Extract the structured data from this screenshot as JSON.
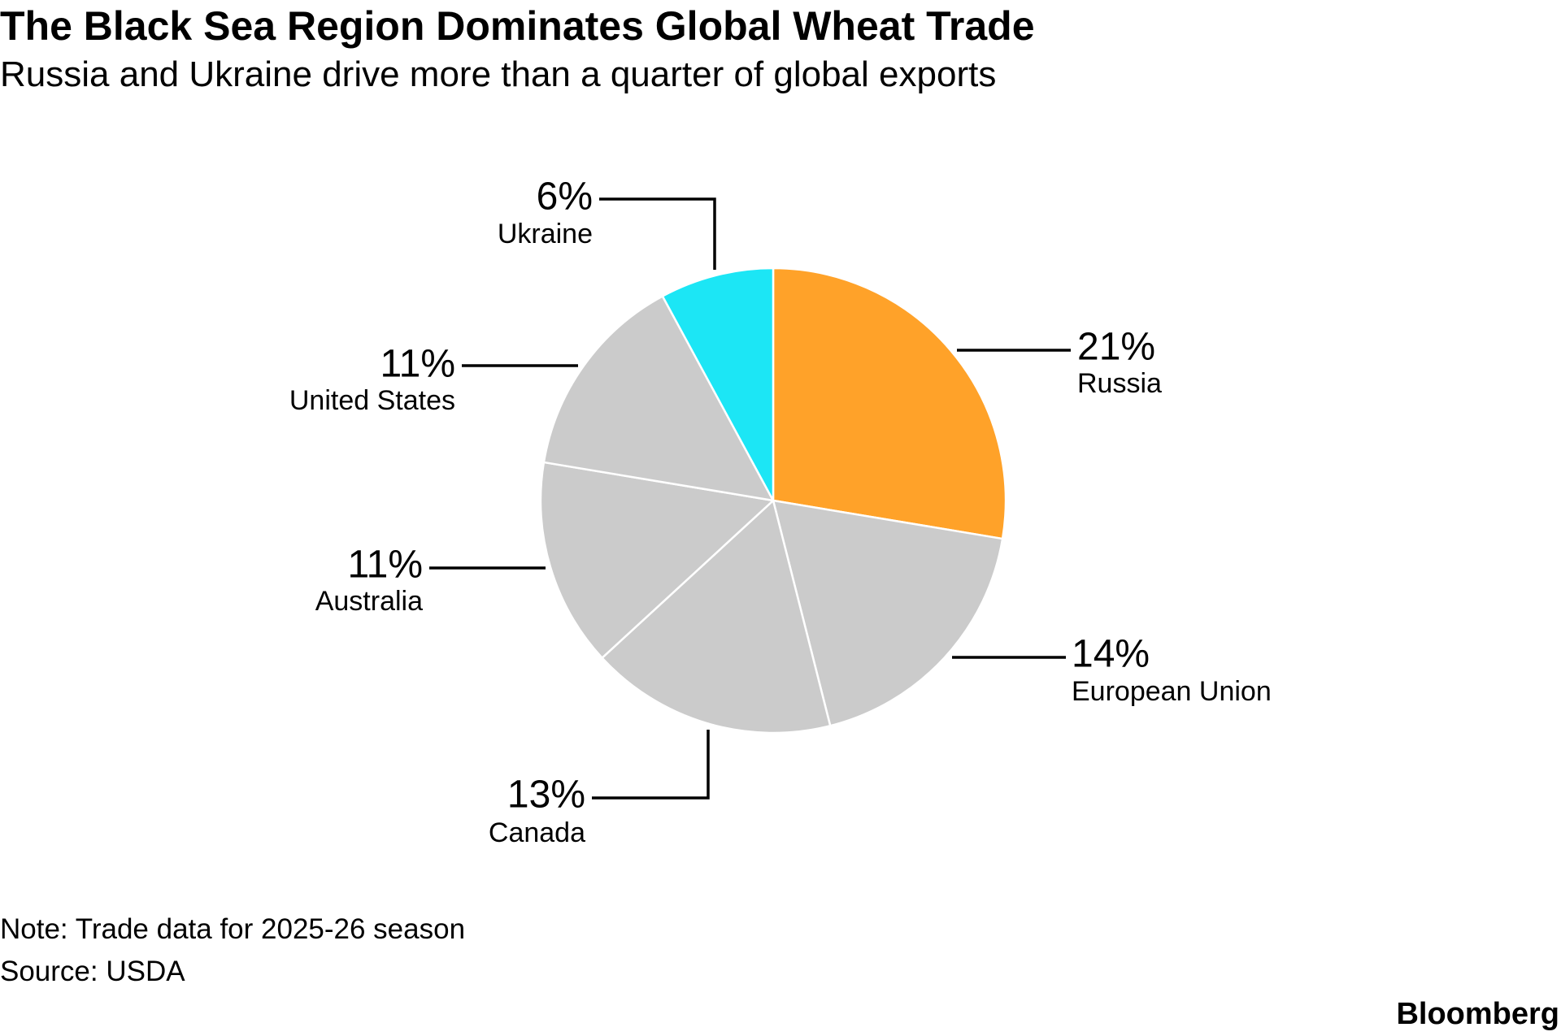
{
  "title": "The Black Sea Region Dominates Global Wheat Trade",
  "subtitle": "Russia and Ukraine drive more than a quarter of global exports",
  "note": "Note: Trade data for 2025-26 season",
  "source": "Source: USDA",
  "brand": "Bloomberg",
  "chart_data": {
    "type": "pie",
    "title": "",
    "start": "12 o'clock",
    "direction": "clockwise",
    "slices": [
      {
        "label": "Russia",
        "value": 21,
        "display": "21%",
        "color": "#ffa229"
      },
      {
        "label": "European Union",
        "value": 14,
        "display": "14%",
        "color": "#cbcbcb"
      },
      {
        "label": "Canada",
        "value": 13,
        "display": "13%",
        "color": "#cbcbcb"
      },
      {
        "label": "Australia",
        "value": 11,
        "display": "11%",
        "color": "#cbcbcb"
      },
      {
        "label": "United States",
        "value": 11,
        "display": "11%",
        "color": "#cbcbcb"
      },
      {
        "label": "Ukraine",
        "value": 6,
        "display": "6%",
        "color": "#1ce6f5"
      }
    ]
  }
}
